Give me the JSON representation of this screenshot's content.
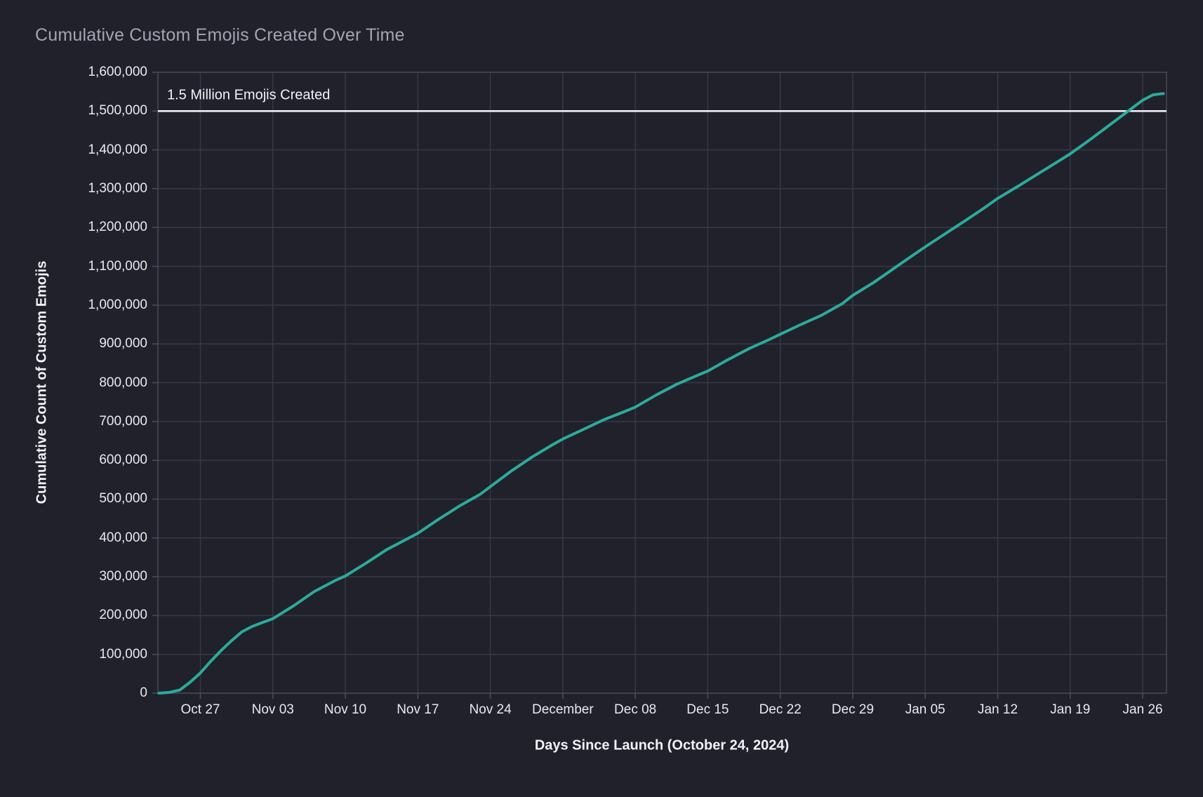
{
  "title": "Cumulative Custom Emojis Created Over Time",
  "colors": {
    "background": "#20212b",
    "gridline": "#383947",
    "axis_border": "#454757",
    "tick_mark": "#4a4c5c",
    "series_line": "#2daa9b",
    "reference_line": "#eeeef6",
    "title_text": "#a2a5b2",
    "tick_text": "#e9e9f0",
    "axis_title_text": "#f2f2f7"
  },
  "chart_data": {
    "type": "line",
    "title": "Cumulative Custom Emojis Created Over Time",
    "xlabel": "Days Since Launch (October 24, 2024)",
    "ylabel": "Cumulative Count of Custom Emojis",
    "ylim": [
      0,
      1600000
    ],
    "x_range_days": [
      -1.1,
      96.3
    ],
    "grid": true,
    "legend": "none",
    "launch_date_label": "October 24, 2024",
    "yticks": [
      {
        "value": 0,
        "label": "0"
      },
      {
        "value": 100000,
        "label": "100,000"
      },
      {
        "value": 200000,
        "label": "200,000"
      },
      {
        "value": 300000,
        "label": "300,000"
      },
      {
        "value": 400000,
        "label": "400,000"
      },
      {
        "value": 500000,
        "label": "500,000"
      },
      {
        "value": 600000,
        "label": "600,000"
      },
      {
        "value": 700000,
        "label": "700,000"
      },
      {
        "value": 800000,
        "label": "800,000"
      },
      {
        "value": 900000,
        "label": "900,000"
      },
      {
        "value": 1000000,
        "label": "1,000,000"
      },
      {
        "value": 1100000,
        "label": "1,100,000"
      },
      {
        "value": 1200000,
        "label": "1,200,000"
      },
      {
        "value": 1300000,
        "label": "1,300,000"
      },
      {
        "value": 1400000,
        "label": "1,400,000"
      },
      {
        "value": 1500000,
        "label": "1,500,000"
      },
      {
        "value": 1600000,
        "label": "1,600,000"
      }
    ],
    "xticks": [
      {
        "day": 3,
        "label": "Oct 27"
      },
      {
        "day": 10,
        "label": "Nov 03"
      },
      {
        "day": 17,
        "label": "Nov 10"
      },
      {
        "day": 24,
        "label": "Nov 17"
      },
      {
        "day": 31,
        "label": "Nov 24"
      },
      {
        "day": 38,
        "label": "December"
      },
      {
        "day": 45,
        "label": "Dec 08"
      },
      {
        "day": 52,
        "label": "Dec 15"
      },
      {
        "day": 59,
        "label": "Dec 22"
      },
      {
        "day": 66,
        "label": "Dec 29"
      },
      {
        "day": 73,
        "label": "Jan 05"
      },
      {
        "day": 80,
        "label": "Jan 12"
      },
      {
        "day": 87,
        "label": "Jan 19"
      },
      {
        "day": 94,
        "label": "Jan 26"
      }
    ],
    "reference_line": {
      "label": "1.5 Million Emojis Created",
      "value": 1500000
    },
    "series": [
      {
        "name": "Cumulative Custom Emojis",
        "color": "#2daa9b",
        "points_day_value": [
          [
            -1,
            0
          ],
          [
            0,
            2000
          ],
          [
            1,
            8000
          ],
          [
            2,
            28000
          ],
          [
            3,
            52000
          ],
          [
            4,
            82000
          ],
          [
            5,
            110000
          ],
          [
            6,
            135000
          ],
          [
            7,
            158000
          ],
          [
            8,
            172000
          ],
          [
            9,
            182000
          ],
          [
            10,
            192000
          ],
          [
            12,
            225000
          ],
          [
            14,
            262000
          ],
          [
            16,
            290000
          ],
          [
            17,
            302000
          ],
          [
            19,
            335000
          ],
          [
            21,
            370000
          ],
          [
            23,
            398000
          ],
          [
            24,
            412000
          ],
          [
            26,
            448000
          ],
          [
            28,
            482000
          ],
          [
            30,
            512000
          ],
          [
            31,
            532000
          ],
          [
            33,
            572000
          ],
          [
            35,
            608000
          ],
          [
            37,
            640000
          ],
          [
            38,
            655000
          ],
          [
            40,
            680000
          ],
          [
            42,
            705000
          ],
          [
            44,
            726000
          ],
          [
            45,
            737000
          ],
          [
            47,
            768000
          ],
          [
            49,
            796000
          ],
          [
            51,
            819000
          ],
          [
            52,
            830000
          ],
          [
            54,
            860000
          ],
          [
            56,
            888000
          ],
          [
            58,
            912000
          ],
          [
            59,
            925000
          ],
          [
            61,
            950000
          ],
          [
            63,
            974000
          ],
          [
            65,
            1004000
          ],
          [
            66,
            1025000
          ],
          [
            68,
            1058000
          ],
          [
            70,
            1095000
          ],
          [
            72,
            1132000
          ],
          [
            73,
            1150000
          ],
          [
            75,
            1185000
          ],
          [
            77,
            1220000
          ],
          [
            79,
            1256000
          ],
          [
            80,
            1275000
          ],
          [
            82,
            1307000
          ],
          [
            84,
            1340000
          ],
          [
            86,
            1373000
          ],
          [
            87,
            1390000
          ],
          [
            89,
            1428000
          ],
          [
            91,
            1468000
          ],
          [
            93,
            1508000
          ],
          [
            94,
            1528000
          ],
          [
            95,
            1542000
          ],
          [
            96,
            1545000
          ]
        ]
      }
    ]
  }
}
